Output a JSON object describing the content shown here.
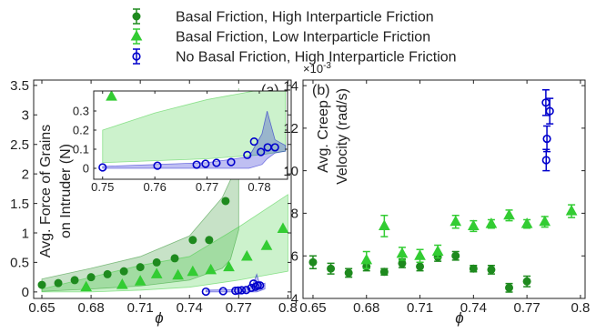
{
  "chart_data": [
    {
      "type": "scatter",
      "annotation": "(a)",
      "xlabel": "ϕ",
      "ylabel": [
        "Avg. Force of Grains",
        "on Intruder (N)"
      ],
      "xlim": [
        0.645,
        0.802
      ],
      "ylim": [
        -0.11,
        3.59
      ],
      "xticks": [
        0.65,
        0.68,
        0.71,
        0.74,
        0.77,
        0.8
      ],
      "yticks": [
        0,
        0.5,
        1,
        1.5,
        2,
        2.5,
        3,
        3.5
      ],
      "series": [
        {
          "name": "Basal Friction, High Interparticle Friction",
          "color": "#1e8a1e",
          "marker": "circle",
          "x": [
            0.65,
            0.66,
            0.67,
            0.68,
            0.69,
            0.7,
            0.71,
            0.72,
            0.731,
            0.742,
            0.752,
            0.762,
            0.772
          ],
          "values": [
            0.12,
            0.15,
            0.2,
            0.25,
            0.3,
            0.35,
            0.42,
            0.5,
            0.57,
            0.88,
            0.88,
            1.54,
            2.16
          ],
          "band": {
            "x": [
              0.65,
              0.68,
              0.71,
              0.74,
              0.76,
              0.765,
              0.77
            ],
            "upper": [
              0.22,
              0.4,
              0.6,
              0.95,
              1.6,
              1.9,
              3.45
            ],
            "lower": [
              0.01,
              0.05,
              0.1,
              0.2,
              0.4,
              0.55,
              1.05
            ]
          }
        },
        {
          "name": "Basal Friction, Low Interparticle Friction",
          "color": "#33cc33",
          "marker": "triangle",
          "x": [
            0.677,
            0.699,
            0.71,
            0.72,
            0.733,
            0.742,
            0.753,
            0.764,
            0.775,
            0.787,
            0.797
          ],
          "values": [
            0.08,
            0.12,
            0.18,
            0.3,
            0.28,
            0.34,
            0.37,
            0.42,
            0.6,
            0.78,
            1.07
          ],
          "band": {
            "x": [
              0.65,
              0.68,
              0.71,
              0.74,
              0.77,
              0.8
            ],
            "upper": [
              0.05,
              0.25,
              0.45,
              0.6,
              1.1,
              1.65
            ],
            "lower": [
              0,
              0,
              0.03,
              0.08,
              0.2,
              0.35
            ]
          }
        },
        {
          "name": "No Basal Friction, High Interparticle Friction",
          "color": "#0000cc",
          "marker": "open-circle",
          "x": [
            0.75,
            0.7605,
            0.768,
            0.7697,
            0.7718,
            0.7746,
            0.7777,
            0.779,
            0.7803,
            0.7816,
            0.783
          ],
          "values": [
            0.005,
            0.014,
            0.019,
            0.024,
            0.029,
            0.033,
            0.07,
            0.14,
            0.086,
            0.11,
            0.11
          ],
          "band": {
            "x": [
              0.75,
              0.77,
              0.778,
              0.781,
              0.783,
              0.786
            ],
            "upper": [
              0.03,
              0.04,
              0.08,
              0.3,
              0.12,
              0.15
            ],
            "lower": [
              0,
              0,
              0,
              0,
              0.02,
              0.05
            ]
          }
        }
      ]
    },
    {
      "type": "scatter",
      "xlim": [
        0.7483,
        0.7854
      ],
      "ylim": [
        -0.057,
        0.405
      ],
      "xticks": [
        0.75,
        0.76,
        0.77,
        0.78
      ],
      "yticks": [
        0,
        0.1,
        0.2,
        0.3
      ],
      "series": [
        {
          "color": "#33cc33",
          "marker": "triangle",
          "x": [
            0.7517
          ],
          "values": [
            0.376
          ],
          "band": {
            "x": [
              0.75,
              0.76,
              0.77,
              0.78,
              0.785
            ],
            "upper": [
              0.2,
              0.29,
              0.36,
              0.41,
              0.43
            ],
            "lower": [
              0.03,
              0.04,
              0.05,
              0.07,
              0.09
            ]
          }
        },
        {
          "color": "#0000cc",
          "marker": "open-circle",
          "x": [
            0.75,
            0.7605,
            0.768,
            0.7697,
            0.7718,
            0.7746,
            0.7777,
            0.779,
            0.7803,
            0.7816,
            0.783
          ],
          "values": [
            0.005,
            0.014,
            0.019,
            0.024,
            0.029,
            0.033,
            0.07,
            0.14,
            0.086,
            0.11,
            0.11
          ],
          "band": {
            "x": [
              0.75,
              0.77,
              0.778,
              0.7805,
              0.7815,
              0.783,
              0.785
            ],
            "upper": [
              0.01,
              0.03,
              0.06,
              0.18,
              0.3,
              0.15,
              0.12
            ],
            "lower": [
              0,
              0,
              0,
              0.02,
              0.05,
              0.08,
              0.09
            ]
          }
        }
      ]
    },
    {
      "type": "scatter",
      "annotation": "(b)",
      "xlabel": "ϕ",
      "ylabel": [
        "Avg. Creep",
        "Velocity (rad/s)"
      ],
      "yscale_base": "×10",
      "yscale_exponent": "-3",
      "xlim": [
        0.6444,
        0.8026
      ],
      "ylim": [
        4,
        14.26
      ],
      "xticks": [
        0.65,
        0.68,
        0.71,
        0.74,
        0.77,
        0.8
      ],
      "yticks": [
        4,
        6,
        8,
        10,
        12,
        14
      ],
      "series": [
        {
          "color": "#1e8a1e",
          "marker": "circle",
          "x": [
            0.65,
            0.66,
            0.67,
            0.68,
            0.69,
            0.7,
            0.71,
            0.72,
            0.73,
            0.74,
            0.75,
            0.76,
            0.77
          ],
          "values": [
            5.7,
            5.4,
            5.2,
            5.5,
            5.25,
            5.65,
            5.5,
            5.95,
            6.0,
            5.4,
            5.35,
            4.5,
            4.8
          ],
          "errors": [
            0.3,
            0.25,
            0.2,
            0.2,
            0.15,
            0.2,
            0.2,
            0.2,
            0.2,
            0.15,
            0.2,
            0.2,
            0.25
          ]
        },
        {
          "color": "#33cc33",
          "marker": "triangle",
          "x": [
            0.68,
            0.69,
            0.7,
            0.71,
            0.72,
            0.73,
            0.74,
            0.75,
            0.76,
            0.77,
            0.78,
            0.795
          ],
          "values": [
            5.8,
            7.4,
            6.1,
            6.0,
            6.2,
            7.6,
            7.4,
            7.5,
            7.9,
            7.5,
            7.6,
            8.1
          ],
          "errors": [
            0.4,
            0.5,
            0.3,
            0.3,
            0.3,
            0.3,
            0.25,
            0.2,
            0.25,
            0.2,
            0.25,
            0.3
          ]
        },
        {
          "color": "#0000cc",
          "marker": "open-circle",
          "x": [
            0.7806,
            0.7808,
            0.7812,
            0.7828
          ],
          "values": [
            13.2,
            10.5,
            11.5,
            12.8
          ],
          "errors": [
            0.6,
            0.5,
            0.6,
            0.6
          ]
        }
      ]
    }
  ]
}
